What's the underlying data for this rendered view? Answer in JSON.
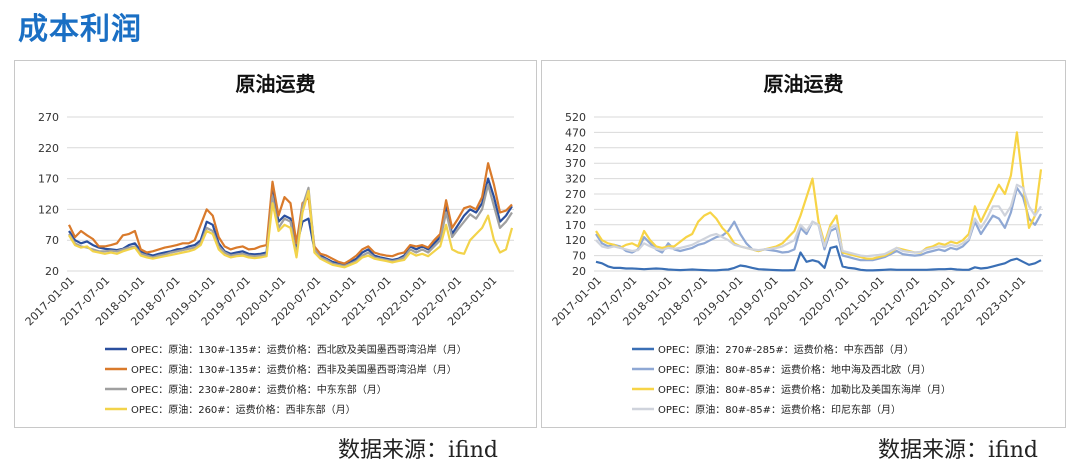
{
  "page": {
    "heading": "成本利润"
  },
  "sources": [
    "数据来源：ifind",
    "数据来源：ifind"
  ],
  "chart_data": [
    {
      "type": "line",
      "title": "原油运费",
      "ylim": [
        20,
        270
      ],
      "yticks": [
        20,
        70,
        120,
        170,
        220,
        270
      ],
      "xlabels": [
        "2017-01-01",
        "2017-07-01",
        "2018-01-01",
        "2018-07-01",
        "2019-01-01",
        "2019-07-01",
        "2020-01-01",
        "2020-07-01",
        "2021-01-01",
        "2021-07-01",
        "2022-01-01",
        "2022-07-01",
        "2023-01-01"
      ],
      "grid": true,
      "legend": "bottom",
      "series": [
        {
          "name": "OPEC：原油：130#-135#：运费价格：西北欧及美国墨西哥湾沿岸（月）",
          "color": "#2a4f9e",
          "values": [
            85,
            70,
            65,
            68,
            62,
            58,
            56,
            55,
            54,
            56,
            62,
            65,
            52,
            48,
            45,
            48,
            50,
            52,
            55,
            56,
            60,
            62,
            70,
            100,
            95,
            65,
            52,
            48,
            50,
            52,
            48,
            47,
            48,
            50,
            160,
            100,
            110,
            105,
            60,
            100,
            105,
            55,
            45,
            40,
            35,
            32,
            30,
            35,
            40,
            50,
            55,
            45,
            42,
            40,
            38,
            40,
            45,
            60,
            55,
            60,
            55,
            65,
            75,
            125,
            80,
            95,
            110,
            120,
            115,
            130,
            170,
            140,
            100,
            110,
            125
          ]
        },
        {
          "name": "OPEC：原油：130#-135#：运费价格：西非及美国墨西哥湾沿岸（月）",
          "color": "#d97a2b",
          "values": [
            95,
            75,
            85,
            78,
            72,
            60,
            60,
            62,
            65,
            78,
            80,
            85,
            55,
            50,
            52,
            55,
            58,
            60,
            62,
            65,
            65,
            70,
            95,
            120,
            110,
            75,
            60,
            55,
            58,
            60,
            55,
            56,
            60,
            62,
            165,
            110,
            140,
            130,
            65,
            130,
            140,
            60,
            48,
            45,
            40,
            35,
            32,
            38,
            45,
            55,
            60,
            50,
            47,
            45,
            44,
            48,
            50,
            62,
            60,
            62,
            58,
            70,
            80,
            135,
            90,
            105,
            122,
            125,
            120,
            140,
            195,
            160,
            115,
            118,
            128
          ]
        },
        {
          "name": "OPEC：原油：230#-280#：运费价格：中东东部（月）",
          "color": "#a0a0a0",
          "values": [
            80,
            65,
            60,
            58,
            55,
            52,
            52,
            53,
            52,
            55,
            58,
            60,
            48,
            45,
            42,
            45,
            47,
            50,
            52,
            54,
            56,
            58,
            65,
            90,
            85,
            60,
            50,
            45,
            47,
            48,
            45,
            44,
            45,
            47,
            140,
            90,
            105,
            100,
            45,
            125,
            155,
            55,
            42,
            38,
            32,
            30,
            28,
            32,
            36,
            45,
            50,
            42,
            40,
            38,
            36,
            38,
            42,
            55,
            50,
            55,
            50,
            60,
            70,
            115,
            75,
            88,
            100,
            112,
            105,
            120,
            160,
            125,
            90,
            100,
            115
          ]
        },
        {
          "name": "OPEC：原油：260#：运费价格：西非东部（月）",
          "color": "#f2d34a",
          "values": [
            78,
            62,
            58,
            60,
            52,
            50,
            48,
            50,
            48,
            52,
            55,
            58,
            45,
            42,
            40,
            42,
            44,
            46,
            48,
            50,
            52,
            55,
            62,
            85,
            80,
            55,
            46,
            42,
            44,
            45,
            42,
            41,
            42,
            44,
            130,
            85,
            95,
            90,
            42,
            115,
            150,
            50,
            40,
            35,
            30,
            28,
            26,
            30,
            34,
            42,
            45,
            40,
            38,
            36,
            34,
            36,
            38,
            50,
            45,
            48,
            44,
            52,
            60,
            95,
            55,
            50,
            48,
            70,
            80,
            90,
            110,
            70,
            50,
            55,
            90
          ]
        }
      ]
    },
    {
      "type": "line",
      "title": "原油运费",
      "ylim": [
        20,
        520
      ],
      "yticks": [
        20,
        70,
        120,
        170,
        220,
        270,
        320,
        370,
        420,
        470,
        520
      ],
      "xlabels": [
        "2017-01-01",
        "2017-07-01",
        "2018-01-01",
        "2018-07-01",
        "2019-01-01",
        "2019-07-01",
        "2020-01-01",
        "2020-07-01",
        "2021-01-01",
        "2021-07-01",
        "2022-01-01",
        "2022-07-01",
        "2023-01-01"
      ],
      "grid": true,
      "legend": "bottom",
      "series": [
        {
          "name": "OPEC：原油：270#-285#：运费价格：中东西部（月）",
          "color": "#3a6fb5",
          "values": [
            50,
            45,
            35,
            30,
            30,
            28,
            28,
            27,
            26,
            27,
            28,
            27,
            25,
            24,
            23,
            24,
            25,
            24,
            23,
            22,
            22,
            24,
            25,
            30,
            38,
            35,
            30,
            26,
            25,
            24,
            23,
            22,
            22,
            23,
            80,
            50,
            55,
            50,
            30,
            95,
            100,
            35,
            30,
            28,
            24,
            22,
            22,
            23,
            24,
            25,
            24,
            24,
            24,
            24,
            24,
            24,
            25,
            26,
            26,
            27,
            25,
            24,
            24,
            32,
            28,
            30,
            35,
            40,
            45,
            55,
            60,
            50,
            40,
            45,
            55
          ]
        },
        {
          "name": "OPEC：原油：80#-85#：运费价格：地中海及西北欧（月）",
          "color": "#8fa8d4",
          "values": [
            140,
            110,
            100,
            105,
            100,
            85,
            80,
            90,
            130,
            110,
            90,
            80,
            110,
            90,
            85,
            90,
            95,
            105,
            110,
            120,
            130,
            135,
            150,
            180,
            140,
            110,
            90,
            85,
            90,
            88,
            85,
            80,
            82,
            90,
            160,
            140,
            180,
            170,
            90,
            150,
            160,
            70,
            65,
            60,
            55,
            55,
            55,
            60,
            65,
            75,
            85,
            75,
            72,
            70,
            72,
            80,
            85,
            90,
            85,
            95,
            90,
            100,
            120,
            180,
            140,
            170,
            200,
            190,
            160,
            210,
            290,
            260,
            190,
            170,
            205
          ]
        },
        {
          "name": "OPEC：原油：80#-85#：运费价格：加勒比及美国东海岸（月）",
          "color": "#f7d447",
          "values": [
            150,
            120,
            110,
            105,
            95,
            105,
            110,
            100,
            150,
            120,
            100,
            95,
            100,
            100,
            115,
            130,
            140,
            180,
            200,
            210,
            190,
            160,
            140,
            110,
            100,
            95,
            90,
            85,
            90,
            95,
            100,
            110,
            130,
            150,
            200,
            260,
            320,
            180,
            110,
            170,
            200,
            80,
            75,
            70,
            65,
            60,
            60,
            65,
            70,
            80,
            95,
            90,
            85,
            80,
            80,
            95,
            100,
            110,
            105,
            115,
            110,
            120,
            140,
            230,
            180,
            220,
            260,
            300,
            270,
            330,
            470,
            300,
            160,
            200,
            350
          ]
        },
        {
          "name": "OPEC：原油：80#-85#：运费价格：印尼东部（月）",
          "color": "#cfd3dc",
          "values": [
            120,
            100,
            95,
            100,
            95,
            90,
            85,
            88,
            110,
            100,
            92,
            88,
            95,
            92,
            95,
            100,
            105,
            115,
            125,
            135,
            140,
            130,
            120,
            105,
            100,
            95,
            90,
            88,
            90,
            92,
            95,
            100,
            110,
            120,
            170,
            150,
            180,
            170,
            100,
            160,
            170,
            85,
            80,
            75,
            70,
            68,
            70,
            72,
            75,
            85,
            95,
            85,
            82,
            80,
            82,
            90,
            95,
            100,
            98,
            105,
            100,
            110,
            125,
            190,
            160,
            190,
            230,
            230,
            200,
            230,
            300,
            290,
            230,
            200,
            230
          ]
        }
      ]
    }
  ]
}
